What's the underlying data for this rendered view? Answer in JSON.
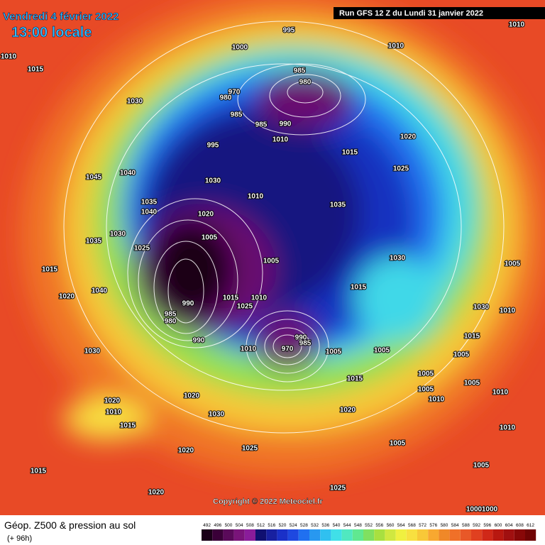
{
  "header": {
    "date": "Vendredi 4 février 2022",
    "time": "13:00 locale",
    "run": "Run GFS 12 Z du Lundi 31 janvier 2022"
  },
  "map": {
    "isobar_labels": [
      1010,
      1010,
      1015,
      995,
      1000,
      1010,
      985,
      980,
      970,
      980,
      985,
      985,
      990,
      995,
      1030,
      1010,
      1015,
      1020,
      1025,
      1040,
      1045,
      1030,
      1010,
      1035,
      1035,
      1040,
      1020,
      1030,
      1025,
      1035,
      1005,
      1005,
      1030,
      1005,
      1015,
      1015,
      1040,
      1020,
      990,
      1015,
      1010,
      1025,
      985,
      980,
      990,
      990,
      985,
      970,
      1010,
      1005,
      1005,
      1030,
      1030,
      1010,
      1015,
      1005,
      1005,
      1005,
      1015,
      1010,
      1010,
      1020,
      1020,
      1010,
      1030,
      1015,
      1020,
      1010,
      1005,
      1025,
      1020,
      1005,
      1015,
      1025,
      1020,
      1005,
      1000,
      1000
    ],
    "copyright": "Copyright © 2022 Meteociel.fr"
  },
  "footer": {
    "title": "Géop. Z500 & pression au sol",
    "lead": "(+ 96h)"
  },
  "legend": {
    "values": [
      492,
      496,
      500,
      504,
      508,
      512,
      516,
      520,
      524,
      528,
      532,
      536,
      540,
      544,
      548,
      552,
      556,
      560,
      564,
      568,
      572,
      576,
      580,
      584,
      588,
      592,
      596,
      600,
      604,
      608,
      612
    ],
    "colors": [
      "#1a0018",
      "#3a0038",
      "#5a0a5a",
      "#7a147a",
      "#8a1c9a",
      "#101070",
      "#1820a0",
      "#1a30c8",
      "#1e48e0",
      "#2070f0",
      "#2898f0",
      "#30c0f0",
      "#40e0e8",
      "#50e8c0",
      "#60e890",
      "#80e060",
      "#a8e040",
      "#d0e840",
      "#f0f040",
      "#f8e040",
      "#f8c838",
      "#f8a830",
      "#f08828",
      "#f07028",
      "#e85828",
      "#e04020",
      "#d02818",
      "#b81810",
      "#a01010",
      "#880808",
      "#700404"
    ]
  }
}
